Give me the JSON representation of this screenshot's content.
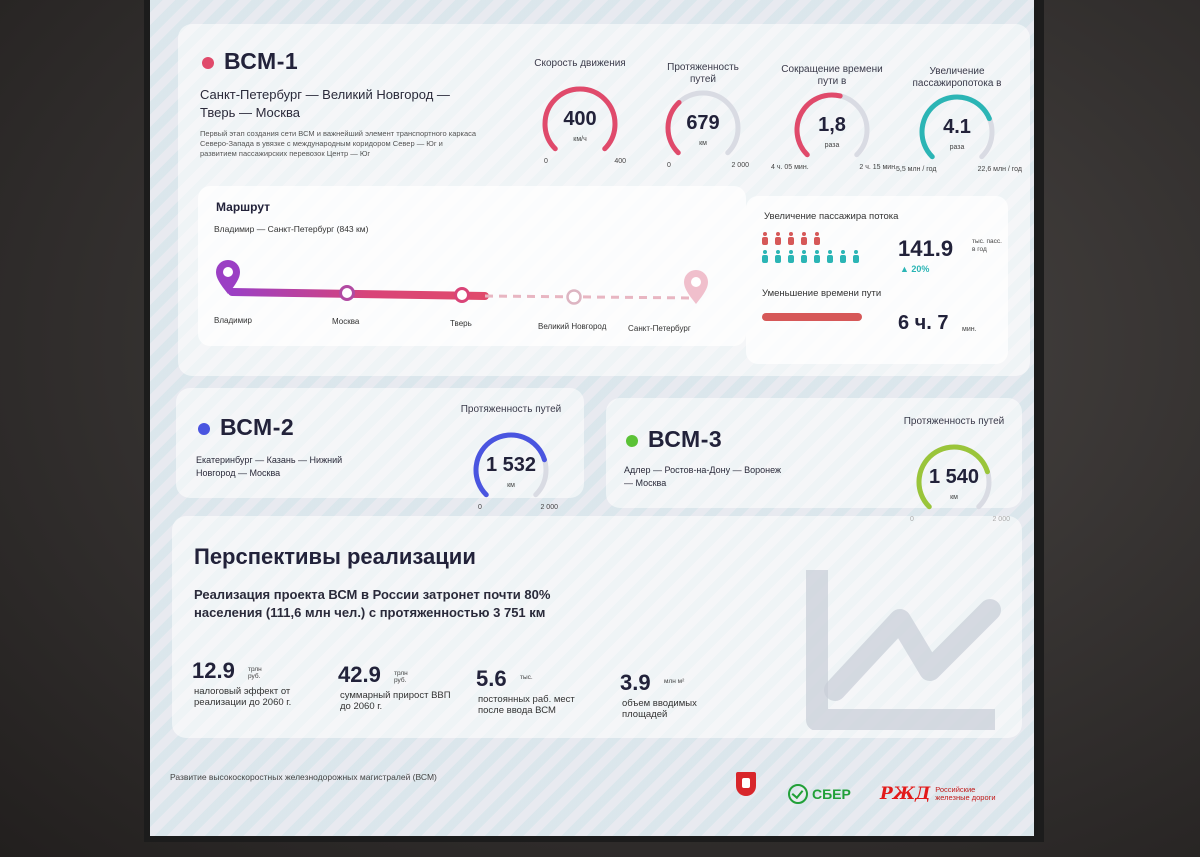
{
  "vsm1": {
    "name": "ВСМ-1",
    "route": "Санкт-Петербург — Великий Новгород — Тверь — Москва",
    "description": "Первый этап создания сети ВСМ и важнейший элемент транспортного каркаса Северо-Запада в увязке с международным коридором Север — Юг и развитием пассажирских перевозок Центр — Юг",
    "color": "#e04a6b",
    "gauges": [
      {
        "label": "Скорость движения",
        "value": "400",
        "unit": "км/ч",
        "min": "0",
        "max": "400",
        "fill": 1.0,
        "color": "#e04a6b"
      },
      {
        "label": "Протяженность путей",
        "value": "679",
        "unit": "км",
        "min": "0",
        "max": "2 000",
        "fill": 0.34,
        "color": "#e04a6b"
      },
      {
        "label": "Сокращение времени пути в",
        "value": "1,8",
        "unit": "раза",
        "min": "4 ч. 05 мин.",
        "max": "2 ч. 15 мин.",
        "fill": 0.55,
        "color": "#e04a6b"
      },
      {
        "label": "Увеличение пассажиропотока в",
        "value": "4.1",
        "unit": "раза",
        "min": "5,5 млн / год",
        "max": "22,6 млн / год",
        "fill": 0.75,
        "color": "#2bb5b5"
      }
    ],
    "route_panel": {
      "title": "Маршрут",
      "subtitle": "Владимир — Санкт-Петербург (843 км)",
      "stations": [
        "Владимир",
        "Москва",
        "Тверь",
        "Великий Новгород",
        "Санкт-Петербург"
      ]
    },
    "passenger_panel": {
      "title": "Увеличение пассажира потока",
      "value": "141.9",
      "unit": "тыс. пасс. в год",
      "growth": "▲ 20%",
      "time_title": "Уменьшение времени пути",
      "time_value": "6 ч. 7",
      "time_unit": "мин."
    }
  },
  "vsm2": {
    "name": "ВСМ-2",
    "color": "#4a55e0",
    "route": "Екатеринбург — Казань — Нижний Новгород — Москва",
    "gauge": {
      "label": "Протяженность путей",
      "value": "1 532",
      "unit": "км",
      "min": "0",
      "max": "2 000",
      "fill": 0.77,
      "color": "#4a55e0"
    }
  },
  "vsm3": {
    "name": "ВСМ-3",
    "color": "#5bc236",
    "route": "Адлер — Ростов-на-Дону — Воронеж — Москва",
    "gauge": {
      "label": "Протяженность путей",
      "value": "1 540",
      "unit": "км",
      "min": "0",
      "max": "2 000",
      "fill": 0.77,
      "color": "#9ac53a"
    }
  },
  "prospects": {
    "title": "Перспективы реализации",
    "text": "Реализация проекта ВСМ в России затронет почти 80% населения (111,6 млн чел.) с протяженностью 3 751 км",
    "stats": [
      {
        "value": "12.9",
        "unit": "трлн руб.",
        "desc": "налоговый эффект от реализации до 2060 г."
      },
      {
        "value": "42.9",
        "unit": "трлн руб.",
        "desc": "суммарный прирост ВВП до 2060 г."
      },
      {
        "value": "5.6",
        "unit": "тыс.",
        "desc": "постоянных раб. мест после ввода ВСМ"
      },
      {
        "value": "3.9",
        "unit": "млн м²",
        "desc": "объем вводимых площадей"
      }
    ]
  },
  "footer": {
    "caption": "Развитие высокоскоростных железнодорожных магистралей (ВСМ)",
    "sber": "СБЕР",
    "rzd_line1": "Российские",
    "rzd_line2": "железные дороги"
  }
}
